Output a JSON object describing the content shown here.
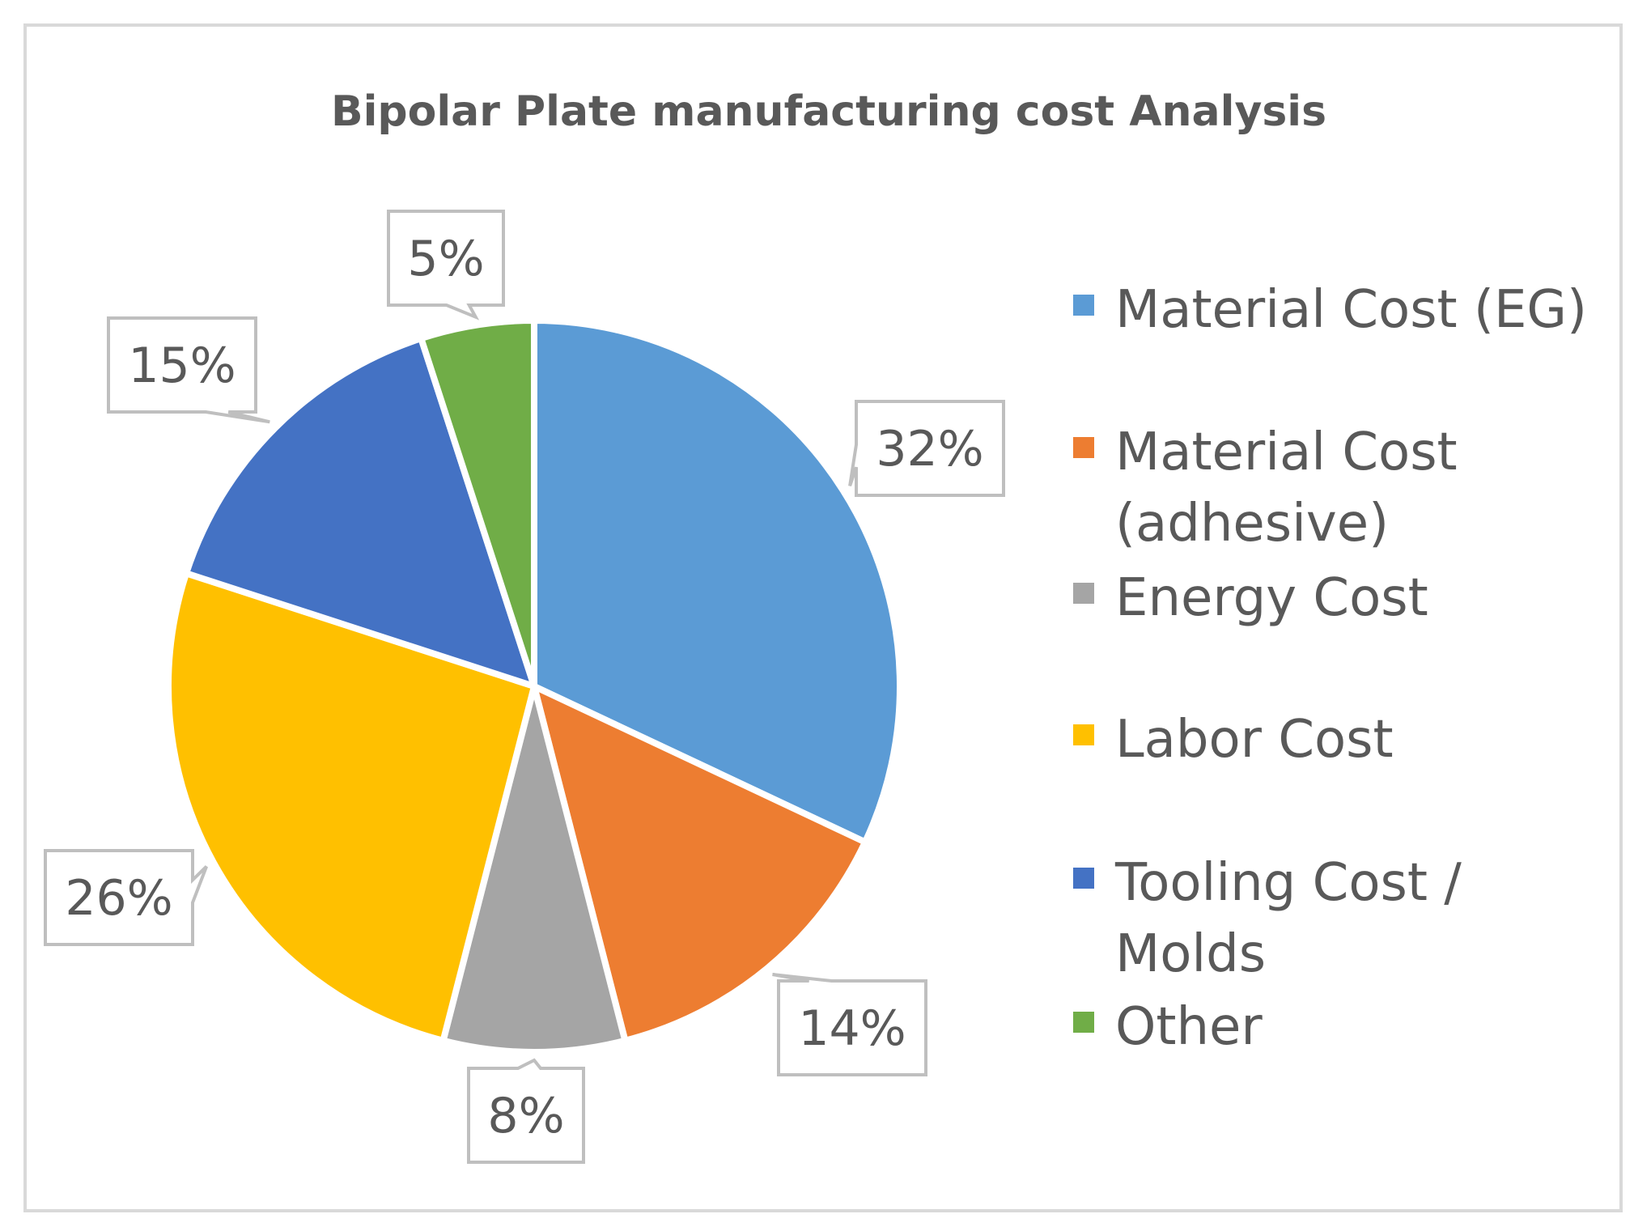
{
  "chart_data": {
    "type": "pie",
    "title": "Bipolar Plate manufacturing cost Analysis",
    "categories": [
      "Material Cost (EG)",
      "Material Cost (adhesive)",
      "Energy Cost",
      "Labor Cost",
      "Tooling Cost / Molds",
      "Other"
    ],
    "values": [
      32,
      14,
      8,
      26,
      15,
      5
    ],
    "labels": [
      "32%",
      "14%",
      "8%",
      "26%",
      "15%",
      "5%"
    ],
    "legend_lines": [
      [
        "Material Cost (EG)"
      ],
      [
        "Material Cost",
        "(adhesive)"
      ],
      [
        "Energy Cost"
      ],
      [
        "Labor Cost"
      ],
      [
        "Tooling Cost /",
        "Molds"
      ],
      [
        "Other"
      ]
    ],
    "colors": [
      "#5B9BD5",
      "#ED7D31",
      "#A5A5A5",
      "#FFC000",
      "#4472C4",
      "#70AD47"
    ],
    "legend_position": "right",
    "start": "top",
    "direction": "clockwise"
  }
}
